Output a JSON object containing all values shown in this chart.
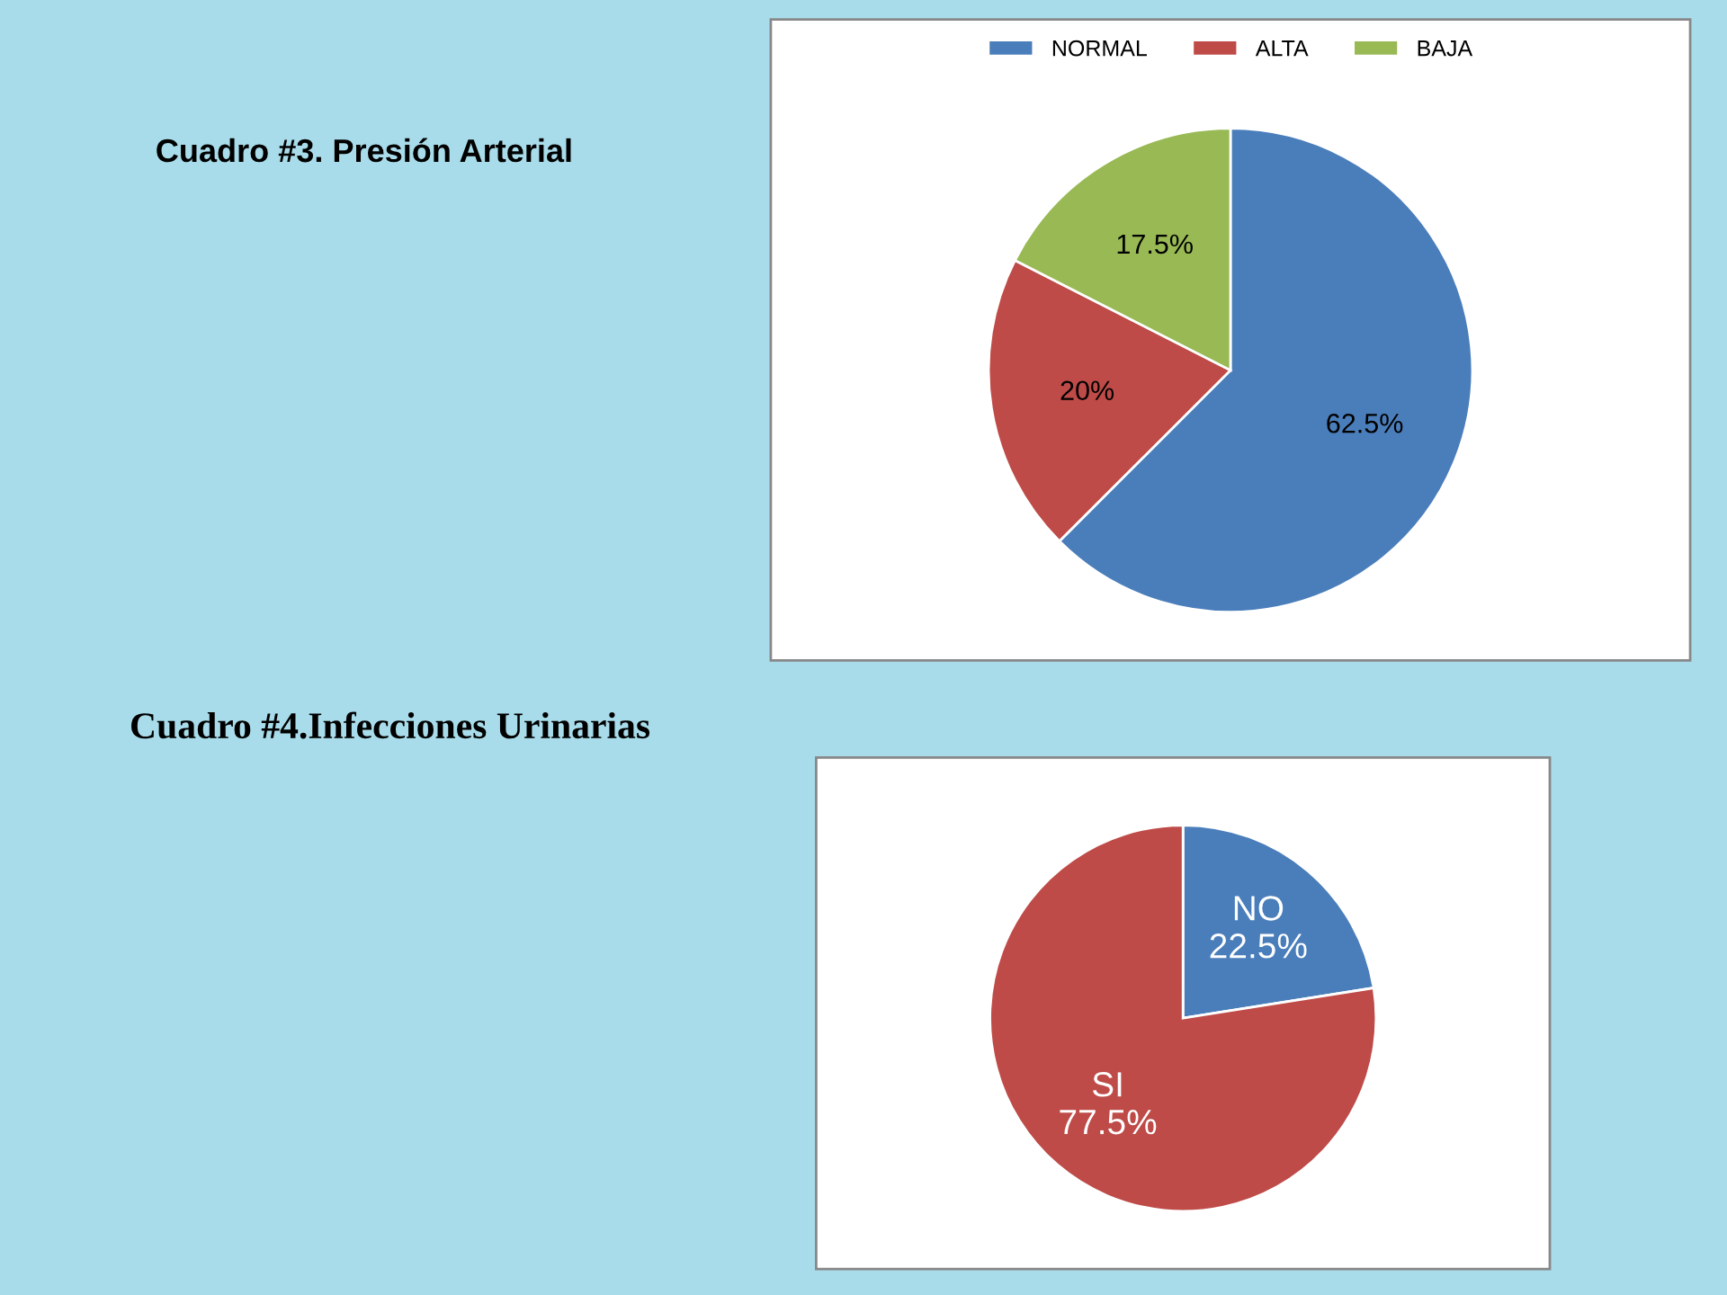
{
  "chart_data": [
    {
      "type": "pie",
      "title": "Cuadro #3. Presión Arterial",
      "categories": [
        "NORMAL",
        "ALTA",
        "BAJA"
      ],
      "values": [
        62.5,
        20,
        17.5
      ],
      "value_labels": [
        "62.5%",
        "20%",
        "17.5%"
      ],
      "colors": [
        "#4a7ebb",
        "#be4b48",
        "#98b954"
      ],
      "legend": "top"
    },
    {
      "type": "pie",
      "title": "Cuadro #4.Infecciones Urinarias",
      "categories": [
        "NO",
        "SI"
      ],
      "values": [
        22.5,
        77.5
      ],
      "value_labels": [
        "22.5%",
        "77.5%"
      ],
      "colors": [
        "#4a7ebb",
        "#be4b48"
      ],
      "legend": false
    }
  ]
}
